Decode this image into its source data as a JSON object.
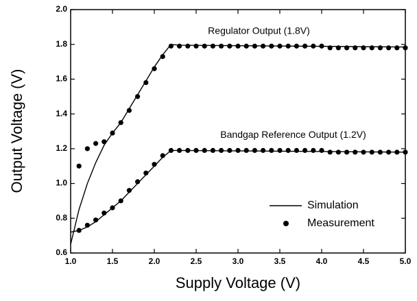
{
  "chart_data": {
    "type": "line",
    "x_label": "Supply Voltage (V)",
    "y_label": "Output Voltage (V)",
    "xlim": [
      1.0,
      5.0
    ],
    "ylim": [
      0.6,
      2.0
    ],
    "xticks": [
      {
        "value": 1,
        "label": "1.0"
      },
      1.5,
      {
        "value": 2,
        "label": "2.0"
      },
      2.5,
      {
        "value": 3,
        "label": "3.0"
      },
      3.5,
      {
        "value": 4,
        "label": "4.0"
      },
      4.5,
      {
        "value": 5,
        "label": "5.0"
      }
    ],
    "yticks": [
      0.6,
      0.8,
      {
        "value": 1,
        "label": "1.0"
      },
      1.2,
      1.4,
      1.6,
      1.8,
      {
        "value": 2,
        "label": "2.0"
      }
    ],
    "legend": "lower right",
    "annotations": [
      {
        "text": "Regulator Output (1.8V)",
        "x": 3.25,
        "y": 1.874
      },
      {
        "text": "Bandgap Reference Output (1.2V)",
        "x": 3.66,
        "y": 1.278
      }
    ],
    "series": [
      {
        "name": "Simulation",
        "style": "line",
        "color": "#000000",
        "x": [
          1.0,
          1.1,
          1.2,
          1.3,
          1.4,
          1.5,
          1.6,
          1.7,
          1.8,
          1.9,
          2.0,
          2.1,
          2.2,
          2.3,
          5.0
        ],
        "values": [
          0.65,
          0.85,
          1.0,
          1.12,
          1.22,
          1.29,
          1.35,
          1.43,
          1.51,
          1.59,
          1.67,
          1.74,
          1.8,
          1.795,
          1.785
        ]
      },
      {
        "style": "line",
        "color": "#000000",
        "x": [
          1.0,
          1.1,
          1.2,
          1.3,
          1.4,
          1.5,
          1.6,
          1.7,
          1.8,
          1.9,
          2.0,
          2.1,
          2.2,
          2.3,
          5.0
        ],
        "values": [
          0.72,
          0.73,
          0.75,
          0.78,
          0.82,
          0.86,
          0.9,
          0.95,
          1.0,
          1.05,
          1.1,
          1.15,
          1.19,
          1.19,
          1.18
        ]
      },
      {
        "name": "Measurement",
        "style": "marker",
        "color": "#000000",
        "x": [
          1.1,
          1.2,
          1.3,
          1.4,
          1.5,
          1.6,
          1.7,
          1.8,
          1.9,
          2.0,
          2.1,
          2.2,
          2.3,
          2.4,
          2.5,
          2.6,
          2.7,
          2.8,
          2.9,
          3.0,
          3.1,
          3.2,
          3.3,
          3.4,
          3.5,
          3.6,
          3.7,
          3.8,
          3.9,
          4.0,
          4.1,
          4.2,
          4.3,
          4.4,
          4.5,
          4.6,
          4.7,
          4.8,
          4.9,
          5.0
        ],
        "values": [
          1.1,
          1.2,
          1.23,
          1.24,
          1.29,
          1.35,
          1.42,
          1.5,
          1.58,
          1.66,
          1.73,
          1.79,
          1.79,
          1.79,
          1.79,
          1.79,
          1.79,
          1.79,
          1.79,
          1.79,
          1.79,
          1.79,
          1.79,
          1.79,
          1.79,
          1.79,
          1.79,
          1.79,
          1.79,
          1.79,
          1.78,
          1.78,
          1.78,
          1.78,
          1.78,
          1.78,
          1.78,
          1.78,
          1.78,
          1.78
        ]
      },
      {
        "style": "marker",
        "color": "#000000",
        "x": [
          1.1,
          1.2,
          1.3,
          1.4,
          1.5,
          1.6,
          1.7,
          1.8,
          1.9,
          2.0,
          2.1,
          2.2,
          2.3,
          2.4,
          2.5,
          2.6,
          2.7,
          2.8,
          2.9,
          3.0,
          3.1,
          3.2,
          3.3,
          3.4,
          3.5,
          3.6,
          3.7,
          3.8,
          3.9,
          4.0,
          4.1,
          4.2,
          4.3,
          4.4,
          4.5,
          4.6,
          4.7,
          4.8,
          4.9,
          5.0
        ],
        "values": [
          0.73,
          0.76,
          0.79,
          0.83,
          0.86,
          0.9,
          0.96,
          1.01,
          1.06,
          1.11,
          1.16,
          1.19,
          1.19,
          1.19,
          1.19,
          1.19,
          1.19,
          1.19,
          1.19,
          1.19,
          1.19,
          1.19,
          1.19,
          1.19,
          1.19,
          1.19,
          1.19,
          1.19,
          1.19,
          1.19,
          1.18,
          1.18,
          1.18,
          1.18,
          1.18,
          1.18,
          1.18,
          1.18,
          1.18,
          1.18
        ]
      }
    ]
  }
}
